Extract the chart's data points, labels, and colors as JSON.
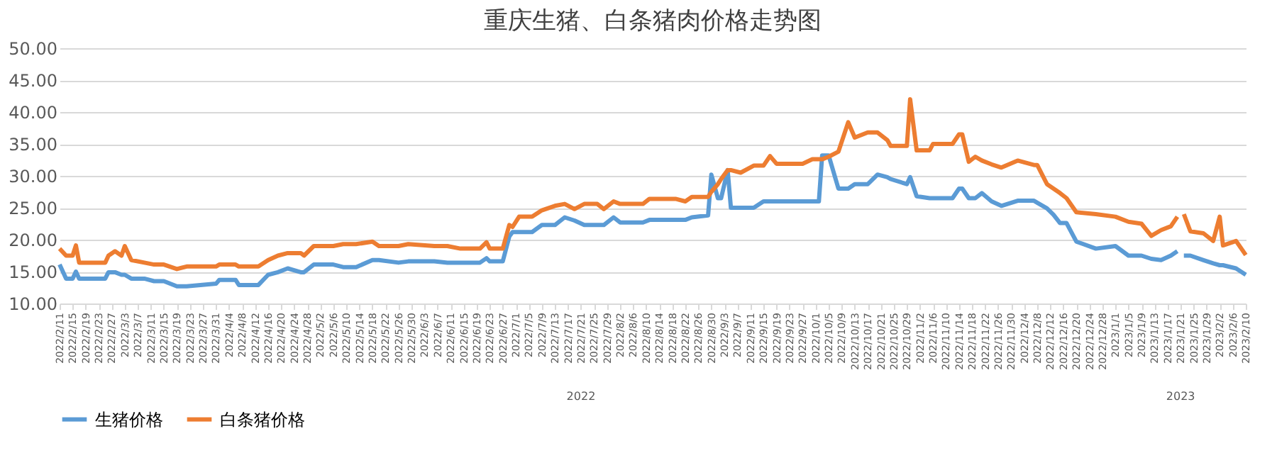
{
  "chart_data": {
    "type": "line",
    "title": "重庆生猪、白条猪肉价格走势图",
    "x": [
      "2022-02-11",
      "2022-02-13",
      "2022-02-15",
      "2022-02-16",
      "2022-02-17",
      "2022-02-25",
      "2022-02-26",
      "2022-02-28",
      "2022-03-02",
      "2022-03-03",
      "2022-03-05",
      "2022-03-09",
      "2022-03-12",
      "2022-03-15",
      "2022-03-19",
      "2022-03-22",
      "2022-03-31",
      "2022-04-01",
      "2022-04-06",
      "2022-04-07",
      "2022-04-13",
      "2022-04-16",
      "2022-04-19",
      "2022-04-22",
      "2022-04-26",
      "2022-04-27",
      "2022-04-30",
      "2022-05-06",
      "2022-05-09",
      "2022-05-13",
      "2022-05-18",
      "2022-05-20",
      "2022-05-26",
      "2022-05-29",
      "2022-06-06",
      "2022-06-10",
      "2022-06-14",
      "2022-06-20",
      "2022-06-22",
      "2022-06-23",
      "2022-06-27",
      "2022-06-29",
      "2022-06-30",
      "2022-07-02",
      "2022-07-06",
      "2022-07-09",
      "2022-07-13",
      "2022-07-16",
      "2022-07-19",
      "2022-07-22",
      "2022-07-26",
      "2022-07-28",
      "2022-07-31",
      "2022-08-02",
      "2022-08-09",
      "2022-08-11",
      "2022-08-19",
      "2022-08-22",
      "2022-08-24",
      "2022-08-29",
      "2022-08-30",
      "2022-09-01",
      "2022-09-02",
      "2022-09-04",
      "2022-09-05",
      "2022-09-08",
      "2022-09-12",
      "2022-09-15",
      "2022-09-17",
      "2022-09-19",
      "2022-09-27",
      "2022-09-30",
      "2022-10-02",
      "2022-10-03",
      "2022-10-05",
      "2022-10-08",
      "2022-10-11",
      "2022-10-13",
      "2022-10-17",
      "2022-10-20",
      "2022-10-23",
      "2022-10-24",
      "2022-10-29",
      "2022-10-30",
      "2022-11-01",
      "2022-11-05",
      "2022-11-06",
      "2022-11-12",
      "2022-11-14",
      "2022-11-15",
      "2022-11-17",
      "2022-11-19",
      "2022-11-21",
      "2022-11-24",
      "2022-11-27",
      "2022-12-02",
      "2022-12-07",
      "2022-12-08",
      "2022-12-11",
      "2022-12-13",
      "2022-12-15",
      "2022-12-17",
      "2022-12-20",
      "2022-12-26",
      "2023-01-01",
      "2023-01-05",
      "2023-01-09",
      "2023-01-12",
      "2023-01-15",
      "2023-01-18",
      "2023-01-20",
      "2023-01-21",
      "2023-01-22",
      "2023-01-24",
      "2023-01-28",
      "2023-01-31",
      "2023-02-02",
      "2023-02-03",
      "2023-02-07",
      "2023-02-10"
    ],
    "series": [
      {
        "name": "生猪价格",
        "color": "#5b9bd5",
        "values": [
          16.1,
          13.9,
          13.9,
          15.0,
          13.9,
          13.9,
          14.9,
          14.9,
          14.5,
          14.5,
          13.9,
          13.9,
          13.5,
          13.5,
          12.7,
          12.7,
          13.1,
          13.7,
          13.7,
          12.9,
          12.9,
          14.5,
          14.9,
          15.5,
          14.9,
          14.9,
          16.1,
          16.1,
          15.7,
          15.7,
          16.8,
          16.8,
          16.4,
          16.6,
          16.6,
          16.4,
          16.4,
          16.4,
          17.1,
          16.6,
          16.6,
          20.5,
          21.2,
          21.2,
          21.2,
          22.3,
          22.3,
          23.5,
          23.0,
          22.3,
          22.3,
          22.3,
          23.5,
          22.7,
          22.7,
          23.1,
          23.1,
          23.1,
          23.5,
          23.8,
          30.2,
          26.5,
          26.5,
          30.9,
          25.0,
          25.0,
          25.0,
          26.0,
          26.0,
          26.0,
          26.0,
          26.0,
          26.0,
          33.2,
          33.2,
          28.0,
          28.0,
          28.7,
          28.7,
          30.2,
          29.8,
          29.5,
          28.7,
          29.8,
          26.8,
          26.5,
          26.5,
          26.5,
          28.0,
          28.0,
          26.5,
          26.5,
          27.3,
          26.0,
          25.3,
          26.1,
          26.1,
          25.8,
          24.9,
          23.9,
          22.6,
          22.6,
          19.7,
          18.6,
          19.0,
          17.5,
          17.5,
          17.0,
          16.8,
          17.5,
          18.2,
          null,
          17.5,
          17.5,
          16.8,
          16.3,
          16.0,
          16.0,
          15.5,
          14.5
        ]
      },
      {
        "name": "白条猪价格",
        "color": "#ed7d31",
        "values": [
          18.6,
          17.5,
          17.5,
          19.1,
          16.4,
          16.4,
          17.5,
          18.2,
          17.5,
          19.0,
          16.8,
          16.4,
          16.1,
          16.1,
          15.4,
          15.8,
          15.8,
          16.1,
          16.1,
          15.8,
          15.8,
          16.8,
          17.5,
          17.9,
          17.9,
          17.5,
          19.0,
          19.0,
          19.3,
          19.3,
          19.7,
          19.0,
          19.0,
          19.3,
          19.0,
          19.0,
          18.6,
          18.6,
          19.6,
          18.6,
          18.6,
          22.3,
          22.0,
          23.6,
          23.6,
          24.6,
          25.3,
          25.6,
          24.8,
          25.6,
          25.6,
          24.8,
          26.0,
          25.6,
          25.6,
          26.4,
          26.4,
          26.0,
          26.7,
          26.7,
          27.5,
          28.7,
          29.5,
          30.9,
          30.9,
          30.5,
          31.6,
          31.6,
          33.1,
          31.9,
          31.9,
          32.6,
          32.6,
          32.6,
          33.0,
          33.8,
          38.4,
          36.0,
          36.8,
          36.8,
          35.6,
          34.7,
          34.7,
          42.0,
          34.0,
          34.0,
          35.0,
          35.0,
          36.5,
          36.5,
          32.2,
          33.0,
          32.4,
          31.8,
          31.3,
          32.4,
          31.7,
          31.7,
          28.7,
          28.0,
          27.3,
          26.5,
          24.3,
          24.0,
          23.6,
          22.8,
          22.5,
          20.6,
          21.5,
          22.1,
          23.6,
          null,
          24.0,
          21.3,
          21.0,
          19.8,
          23.6,
          19.1,
          19.8,
          17.6
        ]
      }
    ],
    "xlim": [
      "2022-02-11",
      "2023-02-10"
    ],
    "xticks": [
      {
        "value": "2022-02-11",
        "label": "2022/2/11"
      },
      {
        "value": "2022-02-15",
        "label": "2022/2/15"
      },
      {
        "value": "2022-02-19",
        "label": "2022/2/19"
      },
      {
        "value": "2022-02-23",
        "label": "2022/2/23"
      },
      {
        "value": "2022-02-27",
        "label": "2022/2/27"
      },
      {
        "value": "2022-03-03",
        "label": "2022/3/3"
      },
      {
        "value": "2022-03-07",
        "label": "2022/3/7"
      },
      {
        "value": "2022-03-11",
        "label": "2022/3/11"
      },
      {
        "value": "2022-03-15",
        "label": "2022/3/15"
      },
      {
        "value": "2022-03-19",
        "label": "2022/3/19"
      },
      {
        "value": "2022-03-23",
        "label": "2022/3/23"
      },
      {
        "value": "2022-03-27",
        "label": "2022/3/27"
      },
      {
        "value": "2022-03-31",
        "label": "2022/3/31"
      },
      {
        "value": "2022-04-04",
        "label": "2022/4/4"
      },
      {
        "value": "2022-04-08",
        "label": "2022/4/8"
      },
      {
        "value": "2022-04-12",
        "label": "2022/4/12"
      },
      {
        "value": "2022-04-16",
        "label": "2022/4/16"
      },
      {
        "value": "2022-04-20",
        "label": "2022/4/20"
      },
      {
        "value": "2022-04-24",
        "label": "2022/4/24"
      },
      {
        "value": "2022-04-28",
        "label": "2022/4/28"
      },
      {
        "value": "2022-05-02",
        "label": "2022/5/2"
      },
      {
        "value": "2022-05-06",
        "label": "2022/5/6"
      },
      {
        "value": "2022-05-10",
        "label": "2022/5/10"
      },
      {
        "value": "2022-05-14",
        "label": "2022/5/14"
      },
      {
        "value": "2022-05-18",
        "label": "2022/5/18"
      },
      {
        "value": "2022-05-22",
        "label": "2022/5/22"
      },
      {
        "value": "2022-05-26",
        "label": "2022/5/26"
      },
      {
        "value": "2022-05-30",
        "label": "2022/5/30"
      },
      {
        "value": "2022-06-03",
        "label": "2022/6/3"
      },
      {
        "value": "2022-06-07",
        "label": "2022/6/7"
      },
      {
        "value": "2022-06-11",
        "label": "2022/6/11"
      },
      {
        "value": "2022-06-15",
        "label": "2022/6/15"
      },
      {
        "value": "2022-06-19",
        "label": "2022/6/19"
      },
      {
        "value": "2022-06-23",
        "label": "2022/6/23"
      },
      {
        "value": "2022-06-27",
        "label": "2022/6/27"
      },
      {
        "value": "2022-07-01",
        "label": "2022/7/1"
      },
      {
        "value": "2022-07-05",
        "label": "2022/7/5"
      },
      {
        "value": "2022-07-09",
        "label": "2022/7/9"
      },
      {
        "value": "2022-07-13",
        "label": "2022/7/13"
      },
      {
        "value": "2022-07-17",
        "label": "2022/7/17"
      },
      {
        "value": "2022-07-21",
        "label": "2022/7/21"
      },
      {
        "value": "2022-07-25",
        "label": "2022/7/25"
      },
      {
        "value": "2022-07-29",
        "label": "2022/7/29"
      },
      {
        "value": "2022-08-02",
        "label": "2022/8/2"
      },
      {
        "value": "2022-08-06",
        "label": "2022/8/6"
      },
      {
        "value": "2022-08-10",
        "label": "2022/8/10"
      },
      {
        "value": "2022-08-14",
        "label": "2022/8/14"
      },
      {
        "value": "2022-08-18",
        "label": "2022/8/18"
      },
      {
        "value": "2022-08-22",
        "label": "2022/8/22"
      },
      {
        "value": "2022-08-26",
        "label": "2022/8/26"
      },
      {
        "value": "2022-08-30",
        "label": "2022/8/30"
      },
      {
        "value": "2022-09-03",
        "label": "2022/9/3"
      },
      {
        "value": "2022-09-07",
        "label": "2022/9/7"
      },
      {
        "value": "2022-09-11",
        "label": "2022/9/11"
      },
      {
        "value": "2022-09-15",
        "label": "2022/9/15"
      },
      {
        "value": "2022-09-19",
        "label": "2022/9/19"
      },
      {
        "value": "2022-09-23",
        "label": "2022/9/23"
      },
      {
        "value": "2022-09-27",
        "label": "2022/9/27"
      },
      {
        "value": "2022-10-01",
        "label": "2022/10/1"
      },
      {
        "value": "2022-10-05",
        "label": "2022/10/5"
      },
      {
        "value": "2022-10-09",
        "label": "2022/10/9"
      },
      {
        "value": "2022-10-13",
        "label": "2022/10/13"
      },
      {
        "value": "2022-10-17",
        "label": "2022/10/17"
      },
      {
        "value": "2022-10-21",
        "label": "2022/10/21"
      },
      {
        "value": "2022-10-25",
        "label": "2022/10/25"
      },
      {
        "value": "2022-10-29",
        "label": "2022/10/29"
      },
      {
        "value": "2022-11-02",
        "label": "2022/11/2"
      },
      {
        "value": "2022-11-06",
        "label": "2022/11/6"
      },
      {
        "value": "2022-11-10",
        "label": "2022/11/10"
      },
      {
        "value": "2022-11-14",
        "label": "2022/11/14"
      },
      {
        "value": "2022-11-18",
        "label": "2022/11/18"
      },
      {
        "value": "2022-11-22",
        "label": "2022/11/22"
      },
      {
        "value": "2022-11-26",
        "label": "2022/11/26"
      },
      {
        "value": "2022-11-30",
        "label": "2022/11/30"
      },
      {
        "value": "2022-12-04",
        "label": "2022/12/4"
      },
      {
        "value": "2022-12-08",
        "label": "2022/12/8"
      },
      {
        "value": "2022-12-12",
        "label": "2022/12/12"
      },
      {
        "value": "2022-12-16",
        "label": "2022/12/16"
      },
      {
        "value": "2022-12-20",
        "label": "2022/12/20"
      },
      {
        "value": "2022-12-24",
        "label": "2022/12/24"
      },
      {
        "value": "2022-12-28",
        "label": "2022/12/28"
      },
      {
        "value": "2023-01-01",
        "label": "2023/1/1"
      },
      {
        "value": "2023-01-05",
        "label": "2023/1/5"
      },
      {
        "value": "2023-01-09",
        "label": "2023/1/9"
      },
      {
        "value": "2023-01-13",
        "label": "2023/1/13"
      },
      {
        "value": "2023-01-17",
        "label": "2023/1/17"
      },
      {
        "value": "2023-01-21",
        "label": "2023/1/21"
      },
      {
        "value": "2023-01-25",
        "label": "2023/1/25"
      },
      {
        "value": "2023-01-29",
        "label": "2023/1/29"
      },
      {
        "value": "2023-02-02",
        "label": "2023/2/2"
      },
      {
        "value": "2023-02-06",
        "label": "2023/2/6"
      },
      {
        "value": "2023-02-10",
        "label": "2023/2/10"
      }
    ],
    "ylim": [
      10,
      50
    ],
    "yticks": [
      {
        "value": 10,
        "label": "10.00"
      },
      {
        "value": 15,
        "label": "15.00"
      },
      {
        "value": 20,
        "label": "20.00"
      },
      {
        "value": 25,
        "label": "25.00"
      },
      {
        "value": 30,
        "label": "30.00"
      },
      {
        "value": 35,
        "label": "35.00"
      },
      {
        "value": 40,
        "label": "40.00"
      },
      {
        "value": 45,
        "label": "45.00"
      },
      {
        "value": 50,
        "label": "50.00"
      }
    ],
    "annotations": [
      "2022",
      "2023"
    ],
    "grid": "y",
    "legend": "bottom",
    "marker": "none",
    "line_style": "solid"
  }
}
